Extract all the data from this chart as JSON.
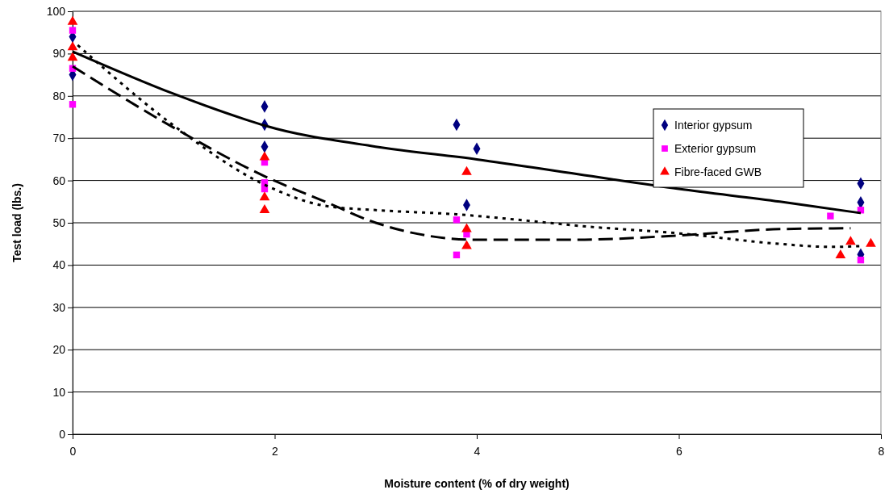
{
  "chart_data": {
    "type": "scatter",
    "xlabel": "Moisture content (% of dry weight)",
    "ylabel": "Test load (lbs.)",
    "xlim": [
      0,
      8
    ],
    "ylim": [
      0,
      100
    ],
    "xticks": [
      0,
      2,
      4,
      6,
      8
    ],
    "yticks": [
      0,
      10,
      20,
      30,
      40,
      50,
      60,
      70,
      80,
      90,
      100
    ],
    "grid": "y",
    "legend": "right",
    "series": [
      {
        "name": "Interior gypsum",
        "color": "#000080",
        "marker": "diamond",
        "x": [
          0,
          0,
          1.9,
          1.9,
          1.9,
          3.8,
          4.0,
          3.9,
          7.8,
          7.8,
          7.8
        ],
        "values": [
          94,
          85,
          77.5,
          73.2,
          68,
          73.2,
          67.5,
          54.2,
          59.3,
          54.8,
          42.5
        ]
      },
      {
        "name": "Exterior gypsum",
        "color": "#ff00ff",
        "marker": "square",
        "x": [
          0,
          0,
          0,
          1.9,
          1.9,
          1.9,
          3.8,
          3.8,
          3.9,
          7.5,
          7.8,
          7.8
        ],
        "values": [
          95.5,
          86.5,
          78,
          64.3,
          59.5,
          58,
          50.7,
          42.4,
          47.3,
          51.6,
          53,
          41.2
        ]
      },
      {
        "name": "Fibre-faced GWB",
        "color": "#ff0000",
        "marker": "triangle",
        "x": [
          0,
          0,
          0,
          1.9,
          1.9,
          1.9,
          3.9,
          3.9,
          3.9,
          7.6,
          7.7,
          7.9
        ],
        "values": [
          97.5,
          91.5,
          89,
          65.5,
          56,
          53,
          62,
          48.5,
          44.5,
          42.3,
          45.5,
          45
        ]
      },
      {
        "type": "line",
        "color": "#000000",
        "line_style": "solid",
        "marker": "none",
        "x": [
          0,
          1,
          1.7,
          1.9,
          3,
          4,
          5,
          6,
          7,
          7.8
        ],
        "values": [
          90.5,
          80.5,
          74.5,
          73,
          68,
          65,
          61.5,
          58,
          55,
          52.3
        ]
      },
      {
        "type": "line",
        "color": "#000000",
        "line_style": "dotted",
        "marker": "none",
        "x": [
          0.05,
          1,
          1.9,
          2.5,
          3,
          3.8,
          4.5,
          5,
          6,
          7,
          7.5,
          7.8
        ],
        "values": [
          92,
          73,
          59,
          54,
          53,
          52,
          50.5,
          49.3,
          47.5,
          45,
          44.3,
          44.5
        ]
      },
      {
        "type": "line",
        "color": "#000000",
        "line_style": "dashed",
        "marker": "none",
        "x": [
          0,
          1,
          1.9,
          2.5,
          3,
          3.5,
          4,
          5,
          6,
          7,
          7.7
        ],
        "values": [
          87,
          72.5,
          61,
          55,
          50,
          47,
          46,
          46,
          47,
          48.5,
          48.7
        ]
      }
    ]
  }
}
